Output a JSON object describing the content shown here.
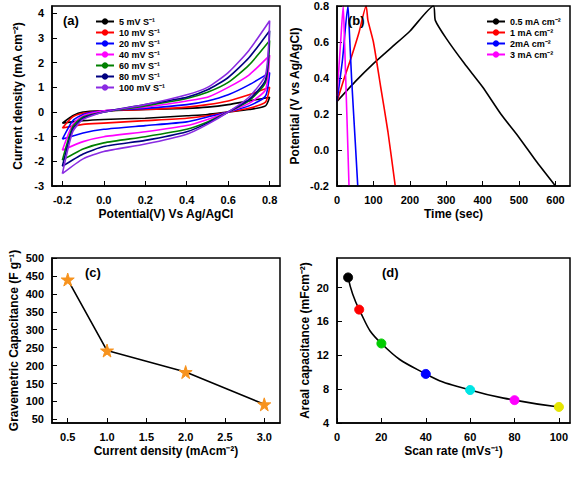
{
  "chart_data": [
    {
      "type": "line",
      "title": "(a)",
      "xlabel": "Potential(V) Vs Ag/AgCl",
      "ylabel": "Current density (mA cm⁻²)",
      "xlim": [
        -0.25,
        0.85
      ],
      "xticks": [
        -0.2,
        {
          "value": 0,
          "label": "0.0"
        },
        0.2,
        0.4,
        0.6,
        0.8
      ],
      "ylim": [
        -3,
        4.3
      ],
      "yticks": [
        -3,
        -2,
        -1,
        0,
        1,
        2,
        3,
        4
      ],
      "grid": false,
      "legend": "upper left",
      "x": [
        -0.2,
        -0.15,
        -0.1,
        0,
        0.2,
        0.4,
        0.5,
        0.6,
        0.7,
        0.8,
        0.78,
        0.7,
        0.6,
        0.5,
        0.4,
        0.2,
        0,
        -0.1,
        -0.2
      ],
      "series": [
        {
          "name": "5 mV S⁻¹",
          "color": "#000000",
          "values": [
            -0.45,
            -0.15,
            0.0,
            0.05,
            0.1,
            0.15,
            0.2,
            0.3,
            0.45,
            0.6,
            0.25,
            0.1,
            0.0,
            -0.1,
            -0.15,
            -0.25,
            -0.3,
            -0.35,
            -0.45
          ]
        },
        {
          "name": "10 mV S⁻¹",
          "color": "#ff0000",
          "values": [
            -0.65,
            -0.2,
            -0.05,
            0.05,
            0.1,
            0.2,
            0.3,
            0.45,
            0.7,
            1.0,
            0.4,
            0.15,
            0.0,
            -0.15,
            -0.25,
            -0.35,
            -0.45,
            -0.5,
            -0.65
          ]
        },
        {
          "name": "20 mV S⁻¹",
          "color": "#0000ff",
          "values": [
            -1.1,
            -0.35,
            -0.1,
            0.05,
            0.15,
            0.3,
            0.45,
            0.7,
            1.1,
            1.6,
            0.65,
            0.25,
            0.0,
            -0.2,
            -0.4,
            -0.55,
            -0.7,
            -0.85,
            -1.1
          ]
        },
        {
          "name": "40 mV S⁻¹",
          "color": "#ff00ff",
          "values": [
            -1.55,
            -0.5,
            -0.15,
            0.05,
            0.2,
            0.45,
            0.6,
            1.0,
            1.5,
            2.3,
            0.9,
            0.35,
            0.0,
            -0.3,
            -0.55,
            -0.8,
            -1.0,
            -1.2,
            -1.55
          ]
        },
        {
          "name": "60 mV S⁻¹",
          "color": "#008000",
          "values": [
            -1.95,
            -0.6,
            -0.2,
            0.0,
            0.25,
            0.55,
            0.8,
            1.2,
            1.9,
            2.9,
            1.2,
            0.45,
            0.0,
            -0.4,
            -0.7,
            -1.0,
            -1.25,
            -1.5,
            -1.95
          ]
        },
        {
          "name": "80 mV S⁻¹",
          "color": "#000080",
          "values": [
            -2.2,
            -0.7,
            -0.25,
            0.0,
            0.3,
            0.6,
            0.9,
            1.4,
            2.2,
            3.3,
            1.3,
            0.5,
            0.0,
            -0.45,
            -0.8,
            -1.15,
            -1.4,
            -1.7,
            -2.2
          ]
        },
        {
          "name": "100 mV S⁻¹",
          "color": "#8a2be2",
          "values": [
            -2.5,
            -0.8,
            -0.3,
            0.0,
            0.3,
            0.7,
            1.0,
            1.6,
            2.5,
            3.7,
            1.5,
            0.6,
            0.0,
            -0.5,
            -0.9,
            -1.3,
            -1.6,
            -1.9,
            -2.5
          ]
        }
      ]
    },
    {
      "type": "line",
      "title": "(b)",
      "xlabel": "Time (sec)",
      "ylabel": "Potential (V vs Ag/AgCl)",
      "xlim": [
        0,
        640
      ],
      "xticks": [
        0,
        100,
        200,
        300,
        400,
        500,
        600
      ],
      "ylim": [
        -0.2,
        0.8
      ],
      "yticks": [
        -0.2,
        {
          "value": 0,
          "label": "0.0"
        },
        0.2,
        0.4,
        0.6,
        0.8
      ],
      "grid": false,
      "legend": "upper right",
      "series": [
        {
          "name": "0.5 mA cm⁻²",
          "color": "#000000",
          "x": [
            0,
            50,
            100,
            150,
            200,
            265,
            270,
            300,
            350,
            400,
            450,
            500,
            550,
            600
          ],
          "values": [
            0.27,
            0.38,
            0.48,
            0.57,
            0.66,
            0.8,
            0.72,
            0.62,
            0.48,
            0.35,
            0.2,
            0.07,
            -0.07,
            -0.2
          ]
        },
        {
          "name": "1 mA cm⁻²",
          "color": "#ff0000",
          "x": [
            0,
            20,
            40,
            60,
            80,
            85,
            100,
            120,
            140,
            160
          ],
          "values": [
            0.27,
            0.4,
            0.52,
            0.65,
            0.8,
            0.72,
            0.6,
            0.35,
            0.1,
            -0.2
          ]
        },
        {
          "name": "2mA cm⁻²",
          "color": "#0000ff",
          "x": [
            0,
            15,
            30,
            33,
            40,
            50,
            57
          ],
          "values": [
            0.27,
            0.5,
            0.8,
            0.7,
            0.4,
            0.05,
            -0.2
          ]
        },
        {
          "name": "3 mA cm⁻²",
          "color": "#ff00ff",
          "x": [
            0,
            10,
            17,
            20,
            27,
            33
          ],
          "values": [
            0.3,
            0.6,
            0.8,
            0.65,
            0.2,
            -0.2
          ]
        }
      ]
    },
    {
      "type": "line",
      "title": "(c)",
      "xlabel": "Current density (mAcm⁻²)",
      "ylabel": "Gravemetric Capacitance (F g⁻¹)",
      "xlim": [
        0.3,
        3.2
      ],
      "xticks": [
        0.5,
        {
          "value": 1,
          "label": "1.0"
        },
        1.5,
        {
          "value": 2,
          "label": "2.0"
        },
        2.5,
        {
          "value": 3,
          "label": "3.0"
        }
      ],
      "ylim": [
        40,
        500
      ],
      "yticks": [
        50,
        100,
        150,
        200,
        250,
        300,
        350,
        400,
        450,
        500
      ],
      "grid": false,
      "series": [
        {
          "color": "#000000",
          "colors": [
            "#f7931e",
            "#f7931e",
            "#f7931e",
            "#f7931e"
          ],
          "marker": "star",
          "line_style": "solid",
          "x": [
            0.5,
            1,
            2,
            3
          ],
          "values": [
            440,
            242,
            182,
            92
          ]
        }
      ]
    },
    {
      "type": "line",
      "title": "(d)",
      "xlabel": "Scan rate (mVs⁻¹)",
      "ylabel": "Areal capacitance (mFcm⁻²)",
      "xlim": [
        0,
        105
      ],
      "xticks": [
        0,
        20,
        40,
        60,
        80,
        100
      ],
      "ylim": [
        4,
        23.5
      ],
      "yticks": [
        4,
        8,
        12,
        16,
        20
      ],
      "grid": false,
      "series": [
        {
          "color": "#000000",
          "colors": [
            "#000000",
            "#ff0000",
            "#00cc00",
            "#0000ff",
            "#00e5e5",
            "#ff00ff",
            "#e5e500"
          ],
          "marker": "circle",
          "line_style": "smooth",
          "x": [
            5,
            10,
            20,
            40,
            60,
            80,
            100
          ],
          "values": [
            21.2,
            17.4,
            13.4,
            9.8,
            7.9,
            6.7,
            5.9
          ]
        }
      ]
    }
  ]
}
